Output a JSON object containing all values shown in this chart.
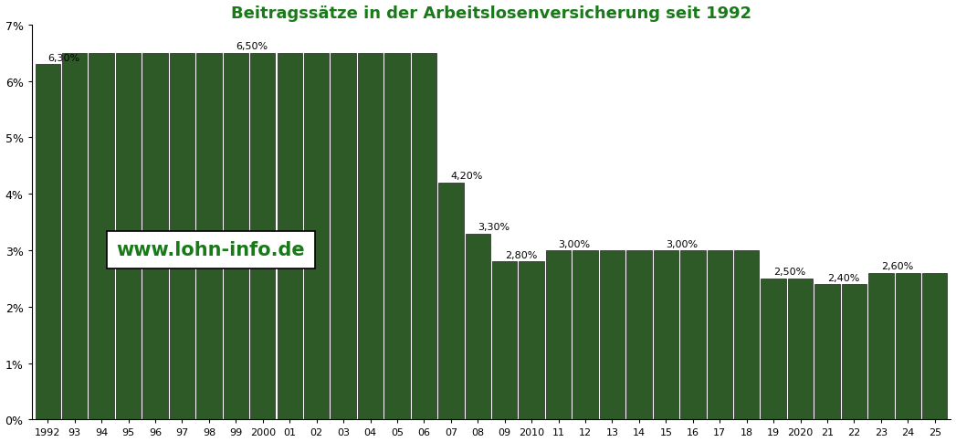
{
  "title": "Beitragssätze in der Arbeitslosenversicherung seit 1992",
  "title_color": "#1a7a1a",
  "bar_color": "#2D5A27",
  "background_color": "#FFFFFF",
  "watermark_text": "www.lohn-info.de",
  "watermark_color": "#1a7a1a",
  "year_labels": [
    "1992",
    "93",
    "94",
    "95",
    "96",
    "97",
    "98",
    "99",
    "2000",
    "01",
    "02",
    "03",
    "04",
    "05",
    "06",
    "07",
    "08",
    "09",
    "2010",
    "11",
    "12",
    "13",
    "14",
    "15",
    "16",
    "17",
    "18",
    "19",
    "2020",
    "21",
    "22",
    "23",
    "24",
    "25"
  ],
  "values": [
    6.3,
    6.5,
    6.5,
    6.5,
    6.5,
    6.5,
    6.5,
    6.5,
    6.5,
    6.5,
    6.5,
    6.5,
    6.5,
    6.5,
    6.5,
    4.2,
    3.3,
    2.8,
    2.8,
    3.0,
    3.0,
    3.0,
    3.0,
    3.0,
    3.0,
    3.0,
    3.0,
    2.5,
    2.5,
    2.4,
    2.4,
    2.6,
    2.6,
    2.6
  ],
  "annotation_map": {
    "0": "6,30%",
    "7": "6,50%",
    "15": "4,20%",
    "16": "3,30%",
    "17": "2,80%",
    "19": "3,00%",
    "23": "3,00%",
    "27": "2,50%",
    "29": "2,40%",
    "31": "2,60%"
  },
  "ylim": [
    0,
    7.0
  ],
  "yticks": [
    0,
    1,
    2,
    3,
    4,
    5,
    6,
    7
  ],
  "ytick_labels": [
    "0%",
    "1%",
    "2%",
    "3%",
    "4%",
    "5%",
    "6%",
    "7%"
  ]
}
